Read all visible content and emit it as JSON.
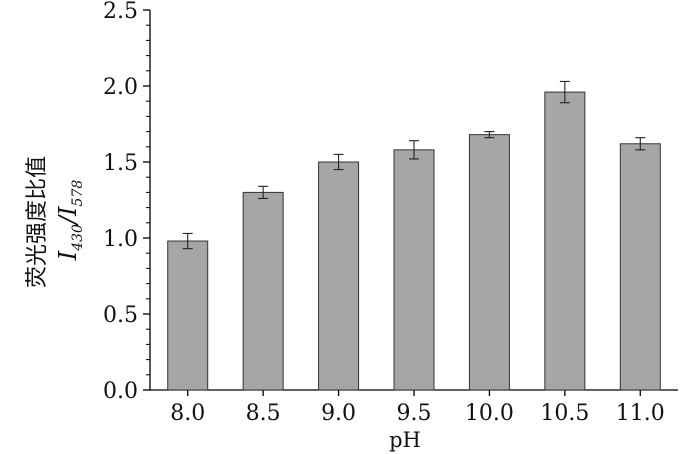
{
  "chart_data": {
    "type": "bar",
    "categories": [
      "8.0",
      "8.5",
      "9.0",
      "9.5",
      "10.0",
      "10.5",
      "11.0"
    ],
    "values": [
      0.98,
      1.3,
      1.5,
      1.58,
      1.68,
      1.96,
      1.62
    ],
    "errors": [
      0.05,
      0.04,
      0.05,
      0.06,
      0.02,
      0.07,
      0.04
    ],
    "xlabel": "pH",
    "ylabel": {
      "chinese": "荧光强度比值",
      "numerator": "I",
      "numerator_sub": "430",
      "separator": "/",
      "denominator": "I",
      "denominator_sub": "578"
    },
    "yticks": [
      "0.0",
      "0.5",
      "1.0",
      "1.5",
      "2.0",
      "2.5"
    ],
    "ylim": [
      0,
      2.5
    ],
    "grid": false,
    "legend": "none",
    "bar_color": "#a6a6a6",
    "bar_edge_color": "#333333"
  }
}
